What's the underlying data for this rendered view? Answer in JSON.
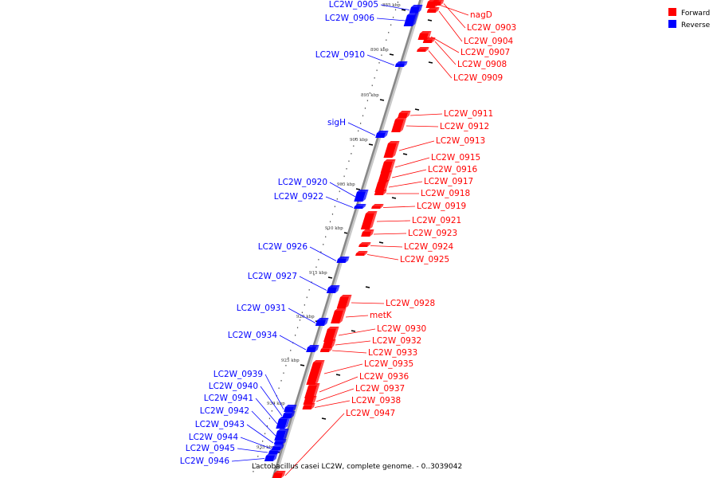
{
  "caption": "Lactobacillus casei LC2W, complete genome. - 0..3039042",
  "legend": [
    {
      "label": "Forward",
      "color": "#ff0000"
    },
    {
      "label": "Reverse",
      "color": "#0000ff"
    }
  ],
  "colors": {
    "forward": "#ff0000",
    "reverse": "#0000ff",
    "backbone": "#888888"
  },
  "ticks": [
    "885 kbp",
    "890 kbp",
    "895 kbp",
    "900 kbp",
    "905 kbp",
    "910 kbp",
    "915 kbp",
    "920 kbp",
    "925 kbp",
    "930 kbp",
    "935 kbp"
  ],
  "forward_genes": [
    "nagD",
    "LC2W_0903",
    "LC2W_0904",
    "LC2W_0907",
    "LC2W_0908",
    "LC2W_0909",
    "LC2W_0911",
    "LC2W_0912",
    "LC2W_0913",
    "LC2W_0915",
    "LC2W_0916",
    "LC2W_0917",
    "LC2W_0918",
    "LC2W_0919",
    "LC2W_0921",
    "LC2W_0923",
    "LC2W_0924",
    "LC2W_0925",
    "LC2W_0928",
    "metK",
    "LC2W_0930",
    "LC2W_0932",
    "LC2W_0933",
    "LC2W_0935",
    "LC2W_0936",
    "LC2W_0937",
    "LC2W_0938",
    "LC2W_0947"
  ],
  "reverse_genes": [
    "LC2W_0905",
    "LC2W_0906",
    "LC2W_0910",
    "sigH",
    "LC2W_0920",
    "LC2W_0922",
    "LC2W_0926",
    "LC2W_0927",
    "LC2W_0931",
    "LC2W_0934",
    "LC2W_0939",
    "LC2W_0940",
    "LC2W_0941",
    "LC2W_0942",
    "LC2W_0943",
    "LC2W_0944",
    "LC2W_0945",
    "LC2W_0946"
  ]
}
